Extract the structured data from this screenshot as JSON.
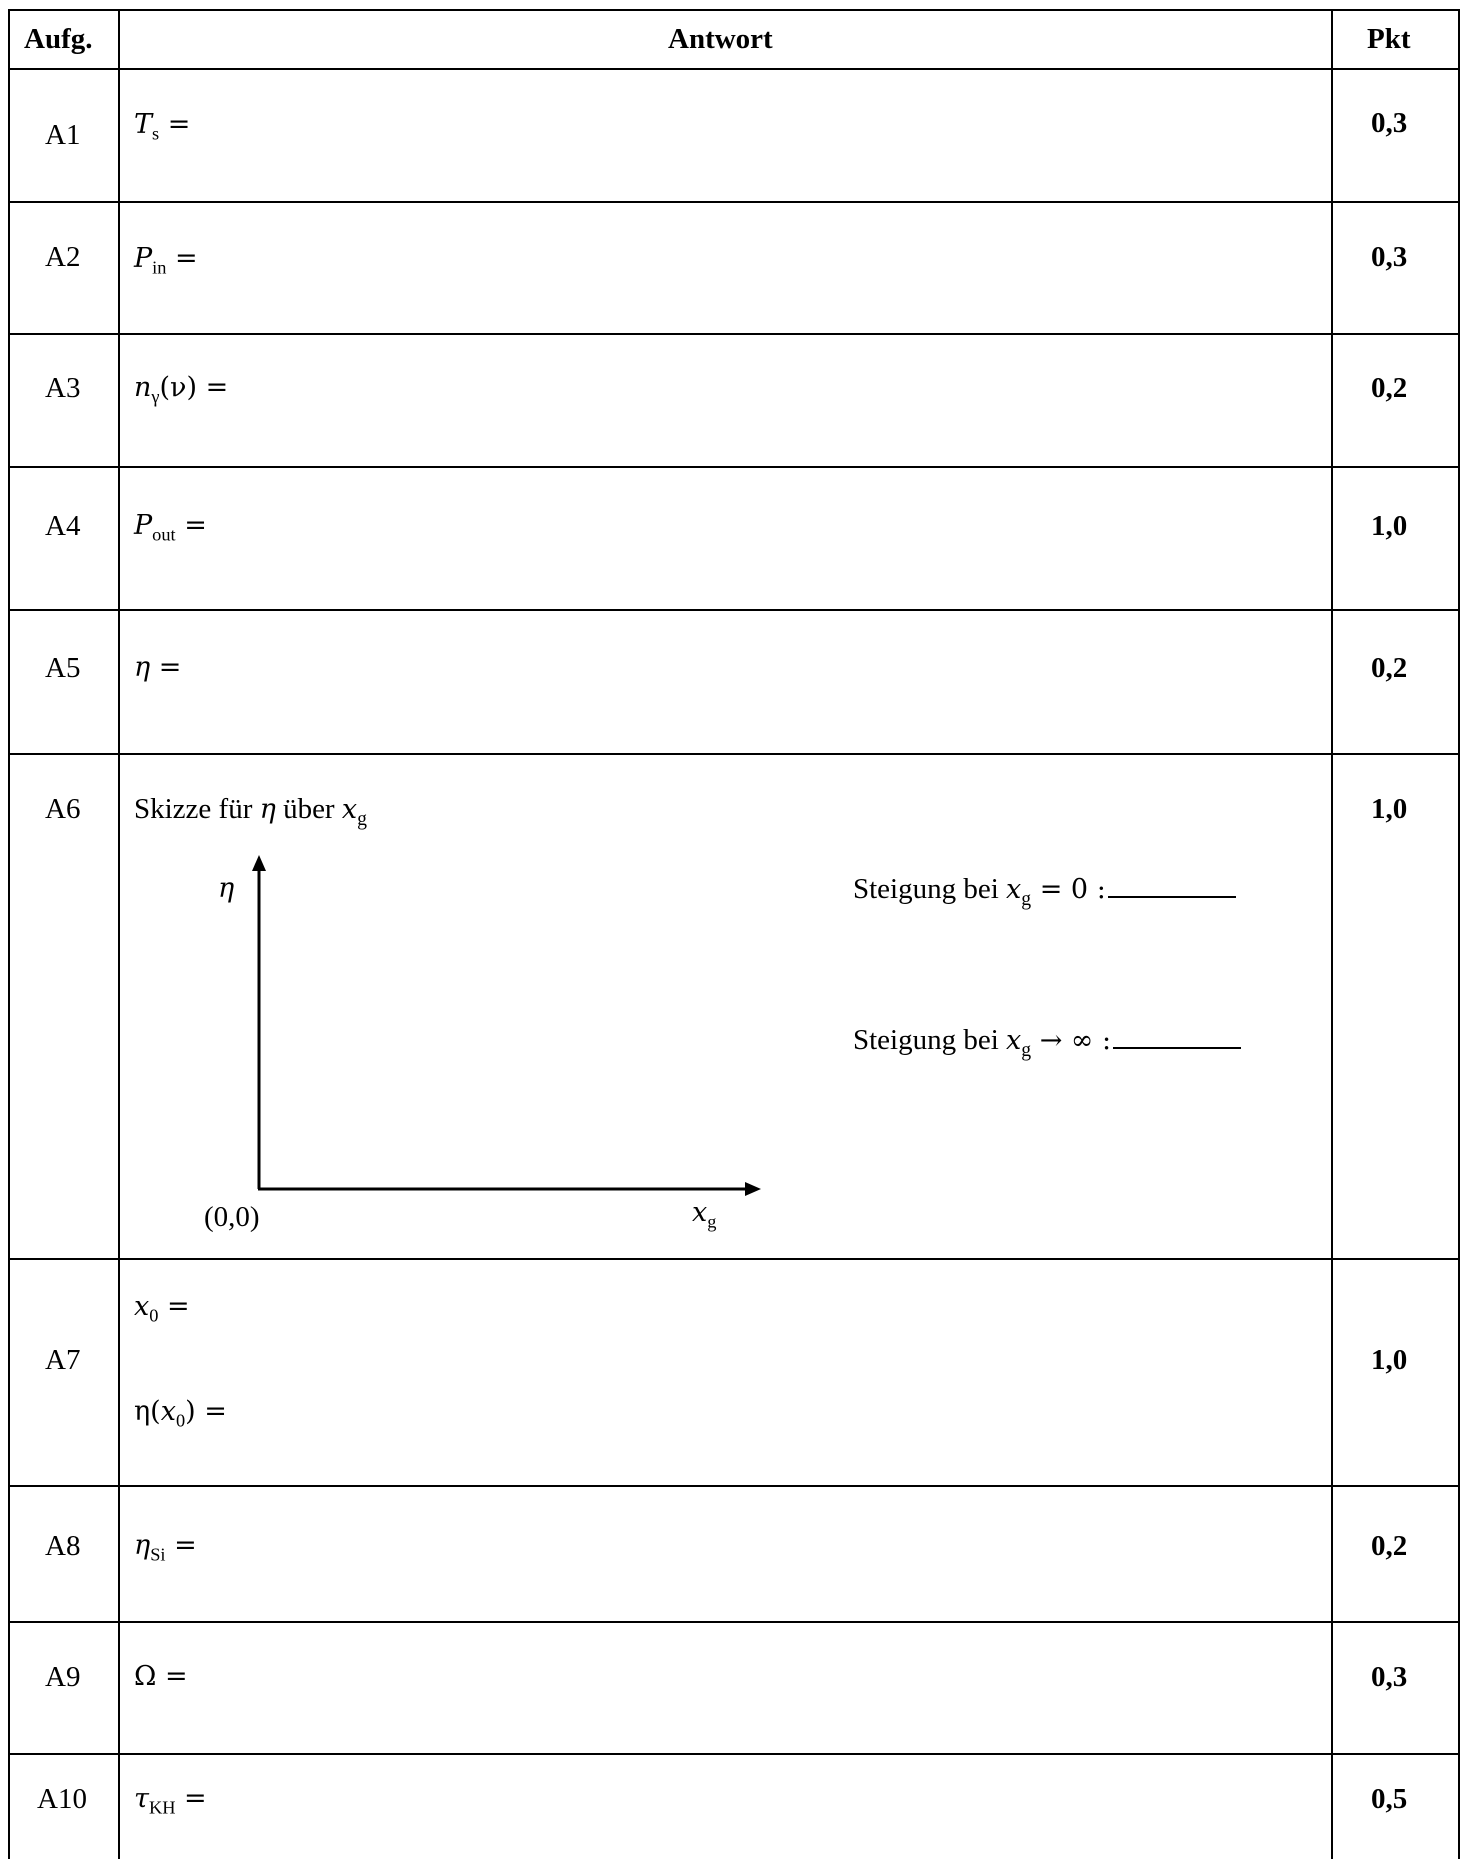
{
  "table": {
    "headers": {
      "task": "Aufg.",
      "answer": "Antwort",
      "points": "Pkt"
    },
    "rows": [
      {
        "task": "A1",
        "lhs": "T",
        "sub": "s",
        "eq": " =",
        "points": "0,3"
      },
      {
        "task": "A2",
        "lhs": "P",
        "sub": "in",
        "eq": " =",
        "points": "0,3"
      },
      {
        "task": "A3",
        "lhs": "n",
        "sub": "γ",
        "eq": "(ν) =",
        "points": "0,2"
      },
      {
        "task": "A4",
        "lhs": "P",
        "sub": "out",
        "eq": " =",
        "points": "1,0"
      },
      {
        "task": "A5",
        "lhs": "η",
        "sub": "",
        "eq": " =",
        "points": "0,2"
      },
      {
        "task": "A6",
        "caption": {
          "pre": "Skizze für ",
          "eta": "η",
          "mid": " über  ",
          "x": "x",
          "xsub": "g"
        },
        "axis": {
          "y_label": "η",
          "x_label": "x",
          "x_label_sub": "g",
          "origin": "(0,0)"
        },
        "slope_zero": {
          "pre": "Steigung bei ",
          "x": "x",
          "xsub": "g",
          "post": " = 0 :"
        },
        "slope_inf": {
          "pre": "Steigung bei  ",
          "x": "x",
          "xsub": "g",
          "post": " → ∞ :"
        },
        "points": "1,0"
      },
      {
        "task": "A7",
        "line1": {
          "lhs": "x",
          "sub": "0",
          "eq": " ="
        },
        "line2": {
          "pre": "η(",
          "x": "x",
          "sub": "0",
          "post": ") ="
        },
        "points": "1,0"
      },
      {
        "task": "A8",
        "lhs": "η",
        "sub": "Si",
        "eq": " =",
        "points": "0,2"
      },
      {
        "task": "A9",
        "lhs": "Ω",
        "sub": "",
        "eq": " =",
        "points": "0,3"
      },
      {
        "task": "A10",
        "lhs": "τ",
        "sub": "KH",
        "eq": " =",
        "points": "0,5"
      }
    ]
  }
}
